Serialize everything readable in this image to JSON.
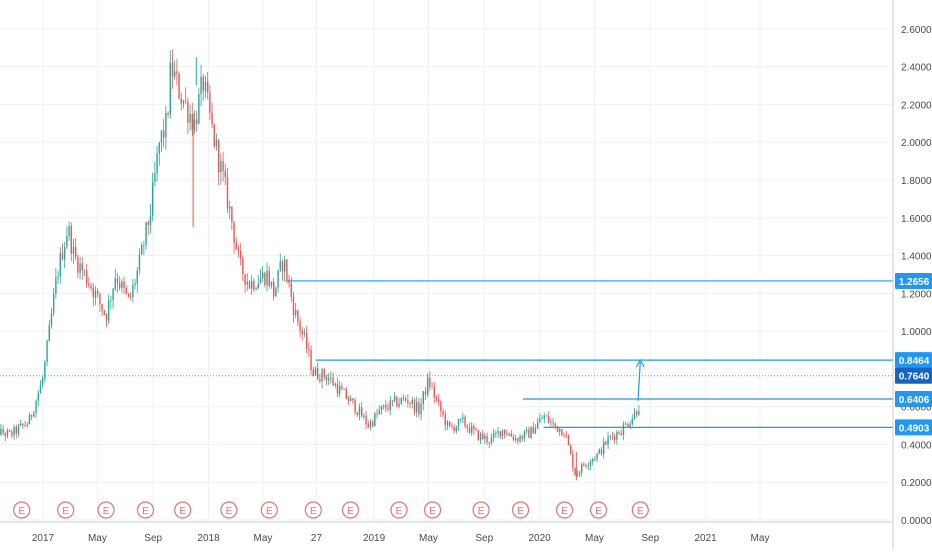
{
  "colors": {
    "up": "#26a69a",
    "down": "#ef5350",
    "hline": "#2196f3",
    "dotted": "#5b9bd5",
    "grid": "#eef1f6",
    "axis_text": "#4a4a4a",
    "badge_bg": "#2196f3",
    "badge_dark": "#1565c0",
    "earnings": "#e57373"
  },
  "earnings_marker_label": "E",
  "chart_data": {
    "type": "candlestick",
    "title": "",
    "xlabel": "",
    "ylabel": "",
    "ylim": [
      0.0,
      2.7
    ],
    "y_ticks": [
      "0.0000",
      "0.2000",
      "0.4000",
      "0.6000",
      "0.8000",
      "1.0000",
      "1.2000",
      "1.4000",
      "1.6000",
      "1.8000",
      "2.0000",
      "2.2000",
      "2.4000",
      "2.6000"
    ],
    "x_ticks": [
      {
        "label": "2017",
        "date": "2017-01-01"
      },
      {
        "label": "May",
        "date": "2017-05-01"
      },
      {
        "label": "Sep",
        "date": "2017-09-01"
      },
      {
        "label": "2018",
        "date": "2018-01-01"
      },
      {
        "label": "May",
        "date": "2018-05-01"
      },
      {
        "label": "27",
        "date": "2018-08-27"
      },
      {
        "label": "2019",
        "date": "2019-01-01"
      },
      {
        "label": "May",
        "date": "2019-05-01"
      },
      {
        "label": "Sep",
        "date": "2019-09-01"
      },
      {
        "label": "2020",
        "date": "2020-01-01"
      },
      {
        "label": "May",
        "date": "2020-05-01"
      },
      {
        "label": "Sep",
        "date": "2020-09-01"
      },
      {
        "label": "2021",
        "date": "2021-01-01"
      },
      {
        "label": "May",
        "date": "2021-05-01"
      }
    ],
    "price_path": [
      [
        "2016-09-01",
        0.48
      ],
      [
        "2016-10-20",
        0.45
      ],
      [
        "2016-12-01",
        0.52
      ],
      [
        "2017-01-01",
        0.75
      ],
      [
        "2017-02-01",
        1.3
      ],
      [
        "2017-02-25",
        1.55
      ],
      [
        "2017-03-10",
        1.4
      ],
      [
        "2017-04-15",
        1.25
      ],
      [
        "2017-05-20",
        1.08
      ],
      [
        "2017-06-10",
        1.3
      ],
      [
        "2017-07-10",
        1.15
      ],
      [
        "2017-08-01",
        1.35
      ],
      [
        "2017-08-25",
        1.62
      ],
      [
        "2017-09-15",
        2.0
      ],
      [
        "2017-10-01",
        2.1
      ],
      [
        "2017-10-10",
        2.4
      ],
      [
        "2017-11-01",
        2.25
      ],
      [
        "2017-12-01",
        2.1
      ],
      [
        "2017-12-20",
        2.32
      ],
      [
        "2018-01-10",
        2.05
      ],
      [
        "2018-02-01",
        1.82
      ],
      [
        "2018-02-20",
        1.6
      ],
      [
        "2018-03-10",
        1.35
      ],
      [
        "2018-04-01",
        1.25
      ],
      [
        "2018-05-10",
        1.3
      ],
      [
        "2018-05-25",
        1.2
      ],
      [
        "2018-06-15",
        1.38
      ],
      [
        "2018-07-10",
        1.1
      ],
      [
        "2018-08-01",
        0.95
      ],
      [
        "2018-08-20",
        0.78
      ],
      [
        "2018-09-20",
        0.76
      ],
      [
        "2018-10-20",
        0.68
      ],
      [
        "2018-11-20",
        0.6
      ],
      [
        "2018-12-20",
        0.5
      ],
      [
        "2019-01-15",
        0.58
      ],
      [
        "2019-02-15",
        0.62
      ],
      [
        "2019-03-15",
        0.64
      ],
      [
        "2019-04-10",
        0.58
      ],
      [
        "2019-05-01",
        0.74
      ],
      [
        "2019-05-20",
        0.62
      ],
      [
        "2019-06-15",
        0.48
      ],
      [
        "2019-07-15",
        0.52
      ],
      [
        "2019-08-15",
        0.45
      ],
      [
        "2019-09-15",
        0.42
      ],
      [
        "2019-10-10",
        0.48
      ],
      [
        "2019-11-10",
        0.43
      ],
      [
        "2019-12-10",
        0.46
      ],
      [
        "2020-01-10",
        0.55
      ],
      [
        "2020-02-01",
        0.5
      ],
      [
        "2020-02-25",
        0.47
      ],
      [
        "2020-03-20",
        0.24
      ],
      [
        "2020-04-10",
        0.3
      ],
      [
        "2020-05-10",
        0.35
      ],
      [
        "2020-06-01",
        0.43
      ],
      [
        "2020-07-01",
        0.48
      ],
      [
        "2020-07-25",
        0.55
      ],
      [
        "2020-08-10",
        0.62
      ]
    ],
    "earnings_dates": [
      "2016-11-15",
      "2017-02-20",
      "2017-05-20",
      "2017-08-15",
      "2017-11-05",
      "2018-02-15",
      "2018-05-15",
      "2018-08-20",
      "2018-11-10",
      "2019-02-25",
      "2019-05-10",
      "2019-08-25",
      "2019-11-20",
      "2020-02-25",
      "2020-05-10",
      "2020-08-10"
    ],
    "horizontal_lines": [
      {
        "price": 1.2656,
        "label": "1.2656",
        "from": "2018-06-20"
      },
      {
        "price": 0.8464,
        "label": "0.8464",
        "from": "2018-08-25"
      },
      {
        "price": 0.6406,
        "label": "0.6406",
        "from": "2019-11-25"
      },
      {
        "price": 0.4903,
        "label": "0.4903",
        "from": "2020-01-10"
      }
    ],
    "current_price": {
      "price": 0.764,
      "label": "0.7640",
      "style": "dotted"
    },
    "arrow": {
      "from_date": "2020-08-05",
      "from_price": 0.63,
      "to_date": "2020-08-10",
      "to_price": 0.8464
    }
  }
}
